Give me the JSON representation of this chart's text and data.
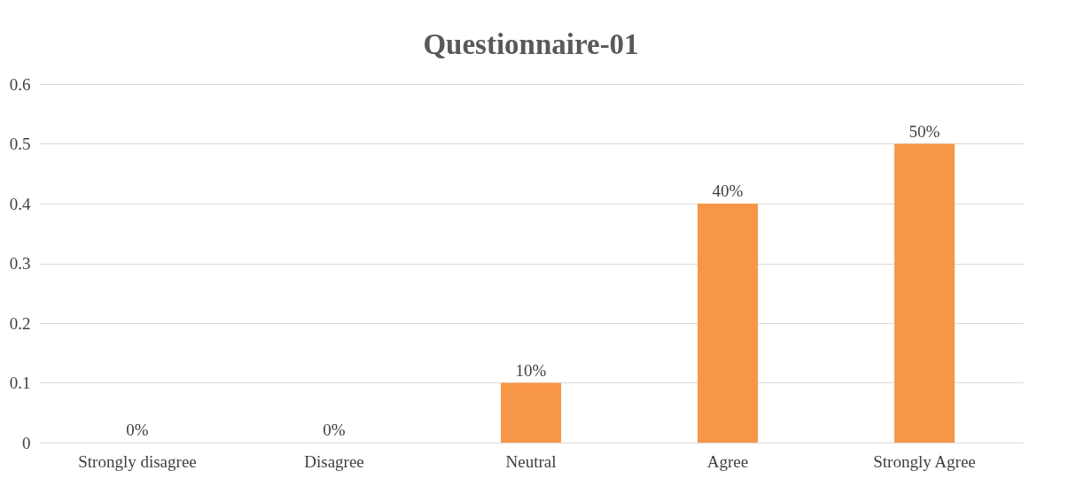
{
  "chart_data": {
    "type": "bar",
    "title": "Questionnaire-01",
    "categories": [
      "Strongly disagree",
      "Disagree",
      "Neutral",
      "Agree",
      "Strongly Agree"
    ],
    "values": [
      0,
      0,
      0.1,
      0.4,
      0.5
    ],
    "value_labels": [
      "0%",
      "0%",
      "10%",
      "40%",
      "50%"
    ],
    "color": "#f79646",
    "ylim": [
      0,
      0.6
    ],
    "yticks": [
      0,
      0.1,
      0.2,
      0.3,
      0.4,
      0.5,
      0.6
    ],
    "grid": "y"
  }
}
